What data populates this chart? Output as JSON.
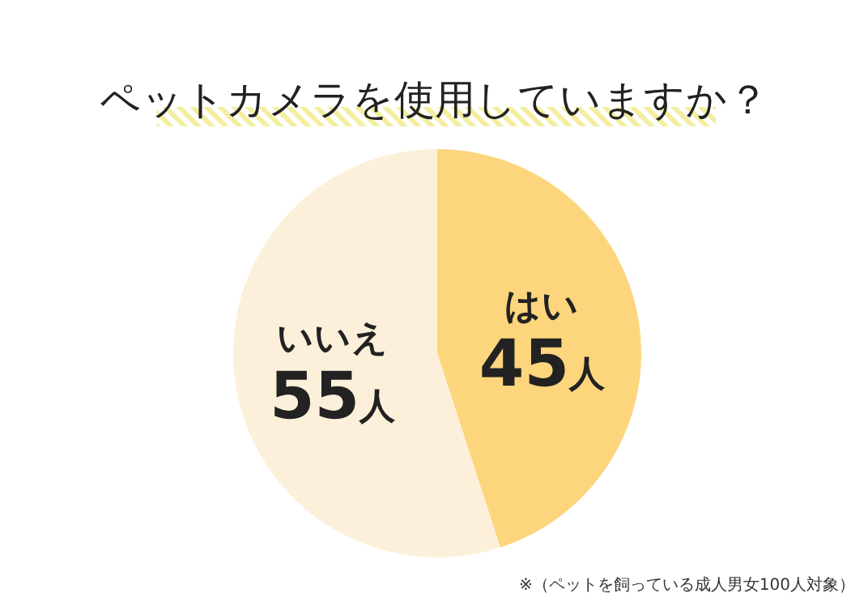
{
  "chart_data": {
    "type": "pie",
    "title": "ペットカメラを使用していますか？",
    "categories": [
      "はい",
      "いいえ"
    ],
    "values": [
      45,
      55
    ],
    "colors": [
      "#fdd57c",
      "#fdf0da"
    ],
    "value_labels": [
      "45人",
      "55人"
    ],
    "annotations": [
      "※（ペットを飼っている成人男女100人対象）"
    ]
  }
}
